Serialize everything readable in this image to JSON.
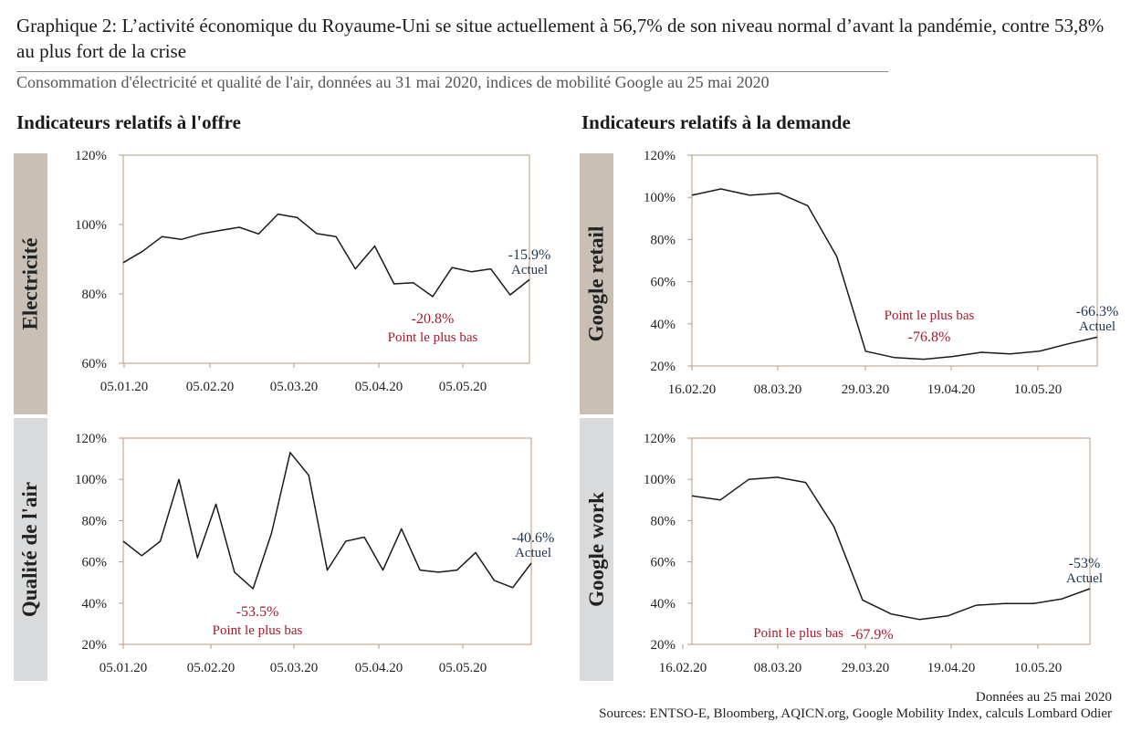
{
  "header": {
    "title": "Graphique 2: L’activité économique du Royaume-Uni se situe actuellement à 56,7% de son niveau normal d’avant la pandémie, contre 53,8% au plus fort de la crise",
    "subtitle": "Consommation d'électricité et qualité de l'air, données au 31 mai 2020, indices de mobilité Google au 25 mai 2020"
  },
  "sections": {
    "supply": "Indicateurs relatifs à l'offre",
    "demand": "Indicateurs relatifs à la demande"
  },
  "colors": {
    "line": "#1a1a1a",
    "axis": "#b89a80",
    "low": "#a6192e",
    "current": "#1f3550",
    "supply_band": "#c9bfb5",
    "demand_band": "#d9dadb"
  },
  "chart_data": [
    {
      "id": "electricite",
      "type": "line",
      "panel_label": "Electricité",
      "y_ticks": [
        "120%",
        "100%",
        "80%",
        "60%"
      ],
      "ylim": [
        60,
        120
      ],
      "x_ticks": [
        "05.01.20",
        "05.02.20",
        "05.03.20",
        "05.04.20",
        "05.05.20"
      ],
      "values": [
        89,
        92.3,
        96.5,
        95.7,
        97.3,
        98.3,
        99.2,
        97.3,
        103,
        102,
        97.4,
        96.5,
        87.2,
        93.8,
        82.9,
        83.2,
        79.2,
        87.6,
        86.4,
        87.2,
        79.7,
        84.1
      ],
      "annotations": {
        "current_value": "-15.9%",
        "current_label": "Actuel",
        "low_value": "-20.8%",
        "low_label": "Point le plus bas"
      }
    },
    {
      "id": "qualite_air",
      "type": "line",
      "panel_label": "Qualité de l'air",
      "y_ticks": [
        "120%",
        "100%",
        "80%",
        "60%",
        "40%",
        "20%"
      ],
      "ylim": [
        20,
        120
      ],
      "x_ticks": [
        "05.01.20",
        "05.02.20",
        "05.03.20",
        "05.04.20",
        "05.05.20"
      ],
      "values": [
        70,
        63,
        70,
        100,
        62,
        88,
        55,
        47,
        74,
        113,
        102,
        56,
        70,
        72,
        56,
        76,
        56,
        55,
        56,
        64.5,
        51,
        47.5,
        59.4
      ],
      "annotations": {
        "current_value": "-40.6%",
        "current_label": "Actuel",
        "low_value": "-53.5%",
        "low_label": "Point le plus bas"
      }
    },
    {
      "id": "google_retail",
      "type": "line",
      "panel_label": "Google retail",
      "y_ticks": [
        "120%",
        "100%",
        "80%",
        "60%",
        "40%",
        "20%"
      ],
      "ylim": [
        20,
        120
      ],
      "x_ticks": [
        "16.02.20",
        "08.03.20",
        "29.03.20",
        "19.04.20",
        "10.05.20"
      ],
      "values": [
        101,
        104,
        101,
        102,
        96,
        72,
        27,
        24,
        23.2,
        24.5,
        26.5,
        25.7,
        27,
        30.5,
        33.7
      ],
      "annotations": {
        "current_value": "-66.3%",
        "current_label": "Actuel",
        "low_value": "-76.8%",
        "low_label": "Point le plus bas"
      }
    },
    {
      "id": "google_work",
      "type": "line",
      "panel_label": "Google work",
      "y_ticks": [
        "120%",
        "100%",
        "80%",
        "60%",
        "40%",
        "20%"
      ],
      "ylim": [
        20,
        120
      ],
      "x_ticks": [
        "16.02.20",
        "08.03.20",
        "29.03.20",
        "19.04.20",
        "10.05.20"
      ],
      "values": [
        92,
        90,
        100,
        101,
        98.5,
        77,
        41.5,
        34.8,
        32.1,
        33.8,
        39,
        39.8,
        39.8,
        42,
        47
      ],
      "annotations": {
        "current_value": "-53%",
        "current_label": "Actuel",
        "low_value": "-67.9%",
        "low_label": "Point le plus bas"
      }
    }
  ],
  "footer": {
    "date_note": "Données au 25 mai 2020",
    "sources": "Sources: ENTSO-E, Bloomberg, AQICN.org, Google Mobility Index, calculs Lombard Odier"
  }
}
